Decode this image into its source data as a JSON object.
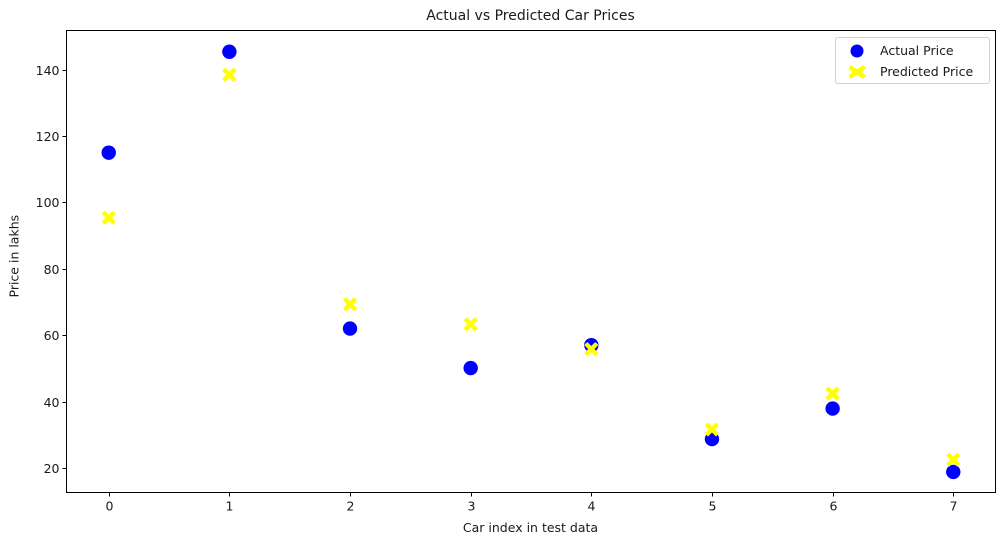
{
  "chart_data": {
    "type": "scatter",
    "title": "Actual vs Predicted Car Prices",
    "xlabel": "Car index in test data",
    "ylabel": "Price in lakhs",
    "x": [
      0,
      1,
      2,
      3,
      4,
      5,
      6,
      7
    ],
    "series": [
      {
        "name": "Actual Price",
        "marker": "circle",
        "color": "#0000ff",
        "values": [
          115.0,
          145.4,
          62.0,
          50.1,
          57.0,
          28.7,
          37.9,
          18.8
        ]
      },
      {
        "name": "Predicted Price",
        "marker": "X",
        "color": "#ffff00",
        "values": [
          95.4,
          138.5,
          69.3,
          63.3,
          55.8,
          31.6,
          42.4,
          22.5
        ]
      }
    ],
    "xlim": [
      -0.35,
      7.35
    ],
    "ylim": [
      12.6,
      151.8
    ],
    "xticks": [
      0,
      1,
      2,
      3,
      4,
      5,
      6,
      7
    ],
    "yticks": [
      20,
      40,
      60,
      80,
      100,
      120,
      140
    ],
    "grid": false,
    "legend_position": "upper right"
  },
  "legend": {
    "items": [
      {
        "label": "Actual Price"
      },
      {
        "label": "Predicted Price"
      }
    ]
  }
}
